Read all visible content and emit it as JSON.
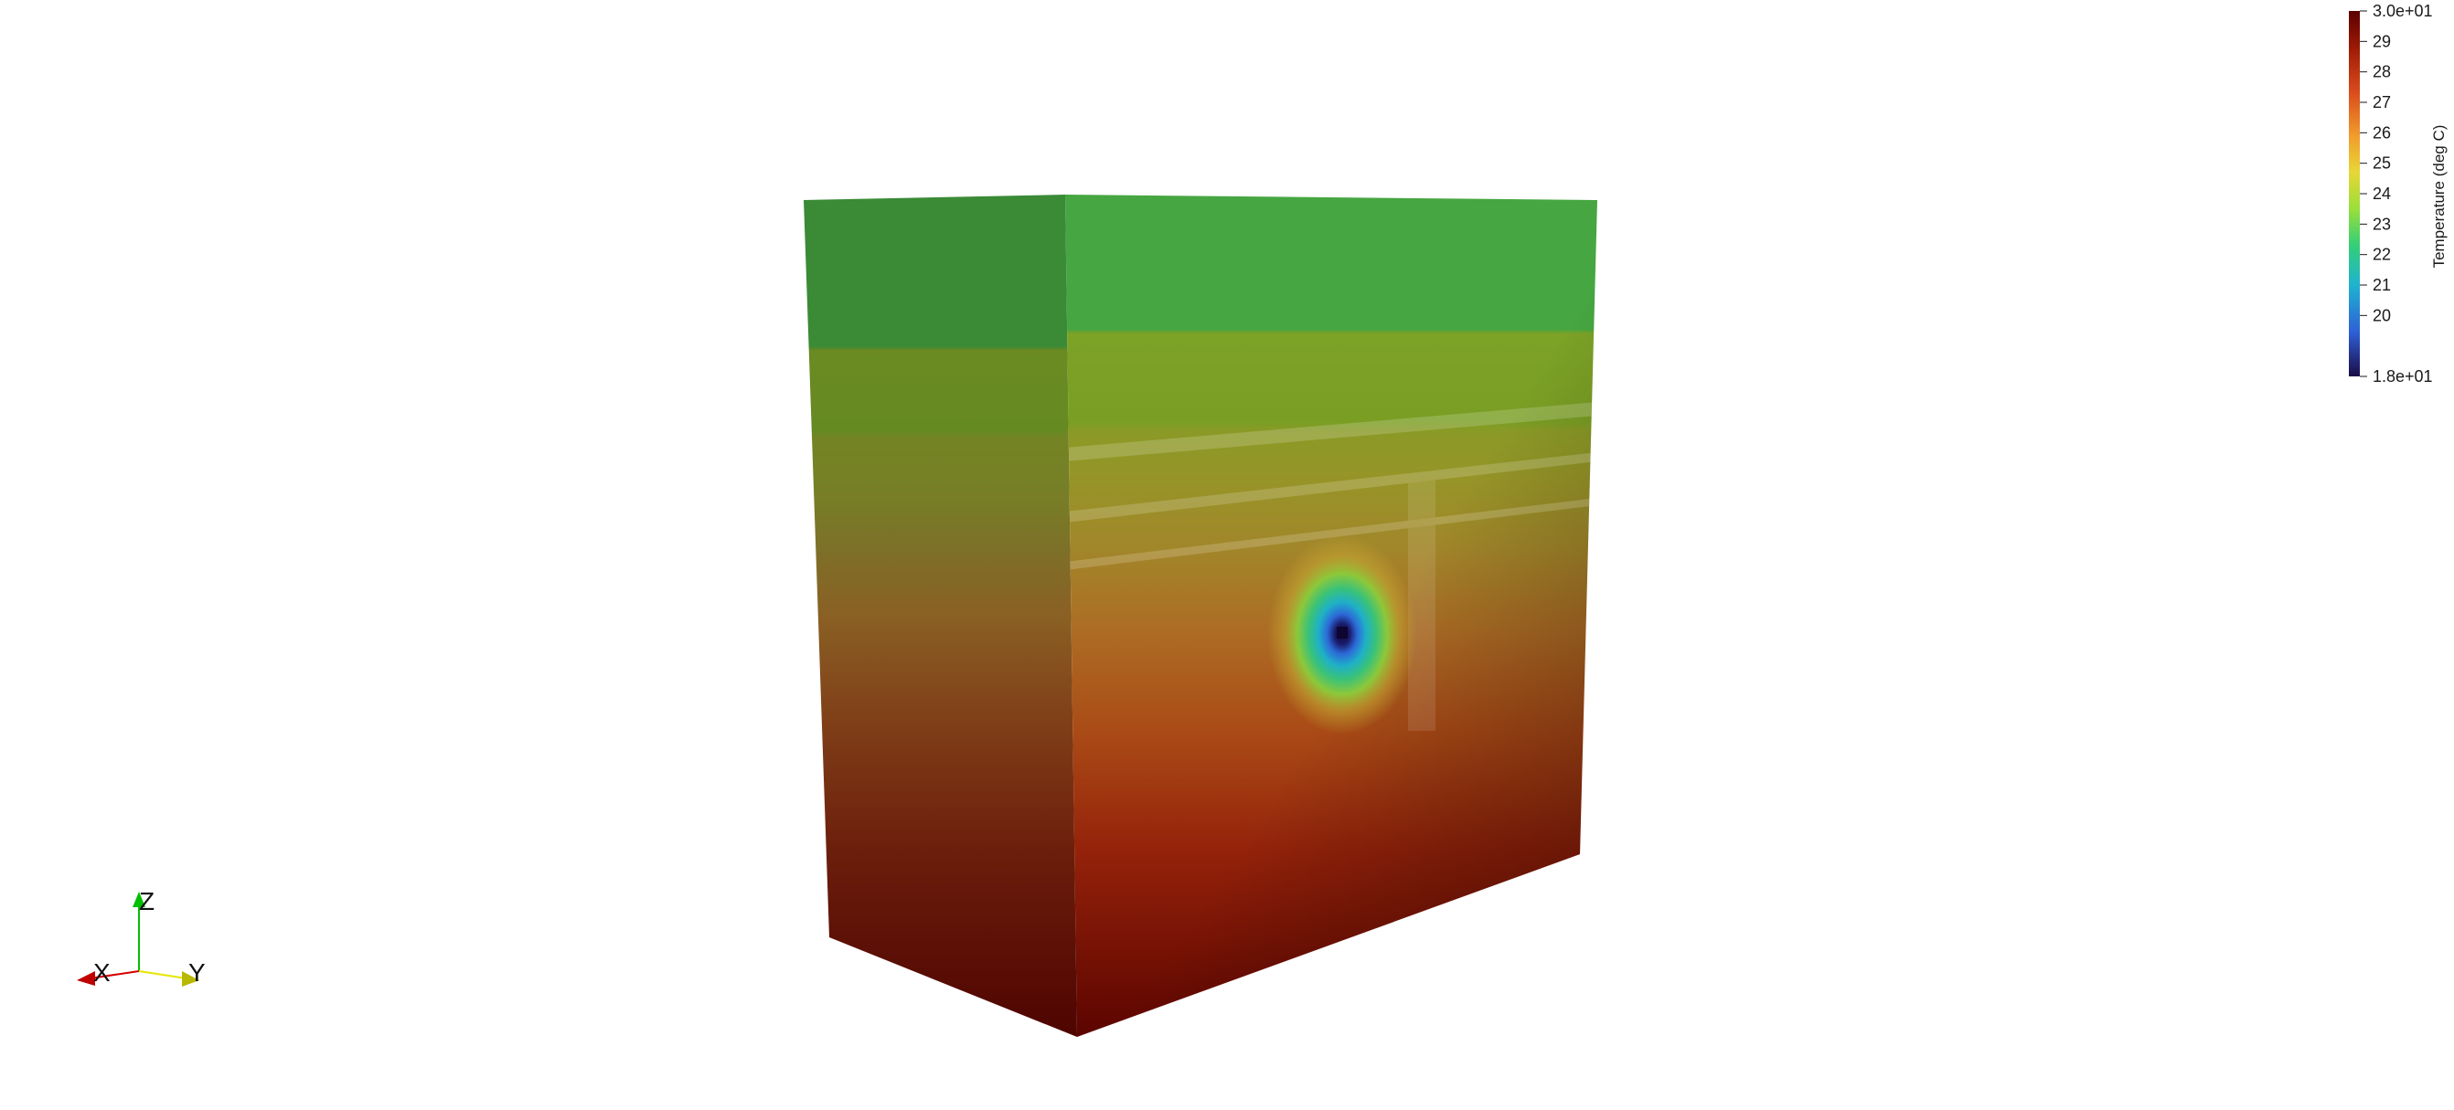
{
  "colorbar": {
    "title": "Temperature (deg C)",
    "range": [
      18,
      30
    ],
    "max_label": "3.0e+01",
    "min_label": "1.8e+01",
    "ticks": [
      {
        "value": 29,
        "label": "29"
      },
      {
        "value": 28,
        "label": "28"
      },
      {
        "value": 27,
        "label": "27"
      },
      {
        "value": 26,
        "label": "26"
      },
      {
        "value": 25,
        "label": "25"
      },
      {
        "value": 24,
        "label": "24"
      },
      {
        "value": 23,
        "label": "23"
      },
      {
        "value": 22,
        "label": "22"
      },
      {
        "value": 21,
        "label": "21"
      },
      {
        "value": 20,
        "label": "20"
      }
    ],
    "colormap": [
      "#1a0c45",
      "#2e5fd6",
      "#1fb3d0",
      "#34cf76",
      "#9bdf3a",
      "#e8d636",
      "#f09b2c",
      "#d94a1c",
      "#9c1a05",
      "#5c0000"
    ]
  },
  "orientation_axes": {
    "x_label": "X",
    "y_label": "Y",
    "z_label": "Z",
    "x_color": "#d40000",
    "y_color": "#e6e600",
    "z_color": "#00c000"
  },
  "model": {
    "description_colors": {
      "top": "#4aa844",
      "hot_bottom": "#5a0500",
      "cold_spot": "#1a0c45"
    }
  }
}
